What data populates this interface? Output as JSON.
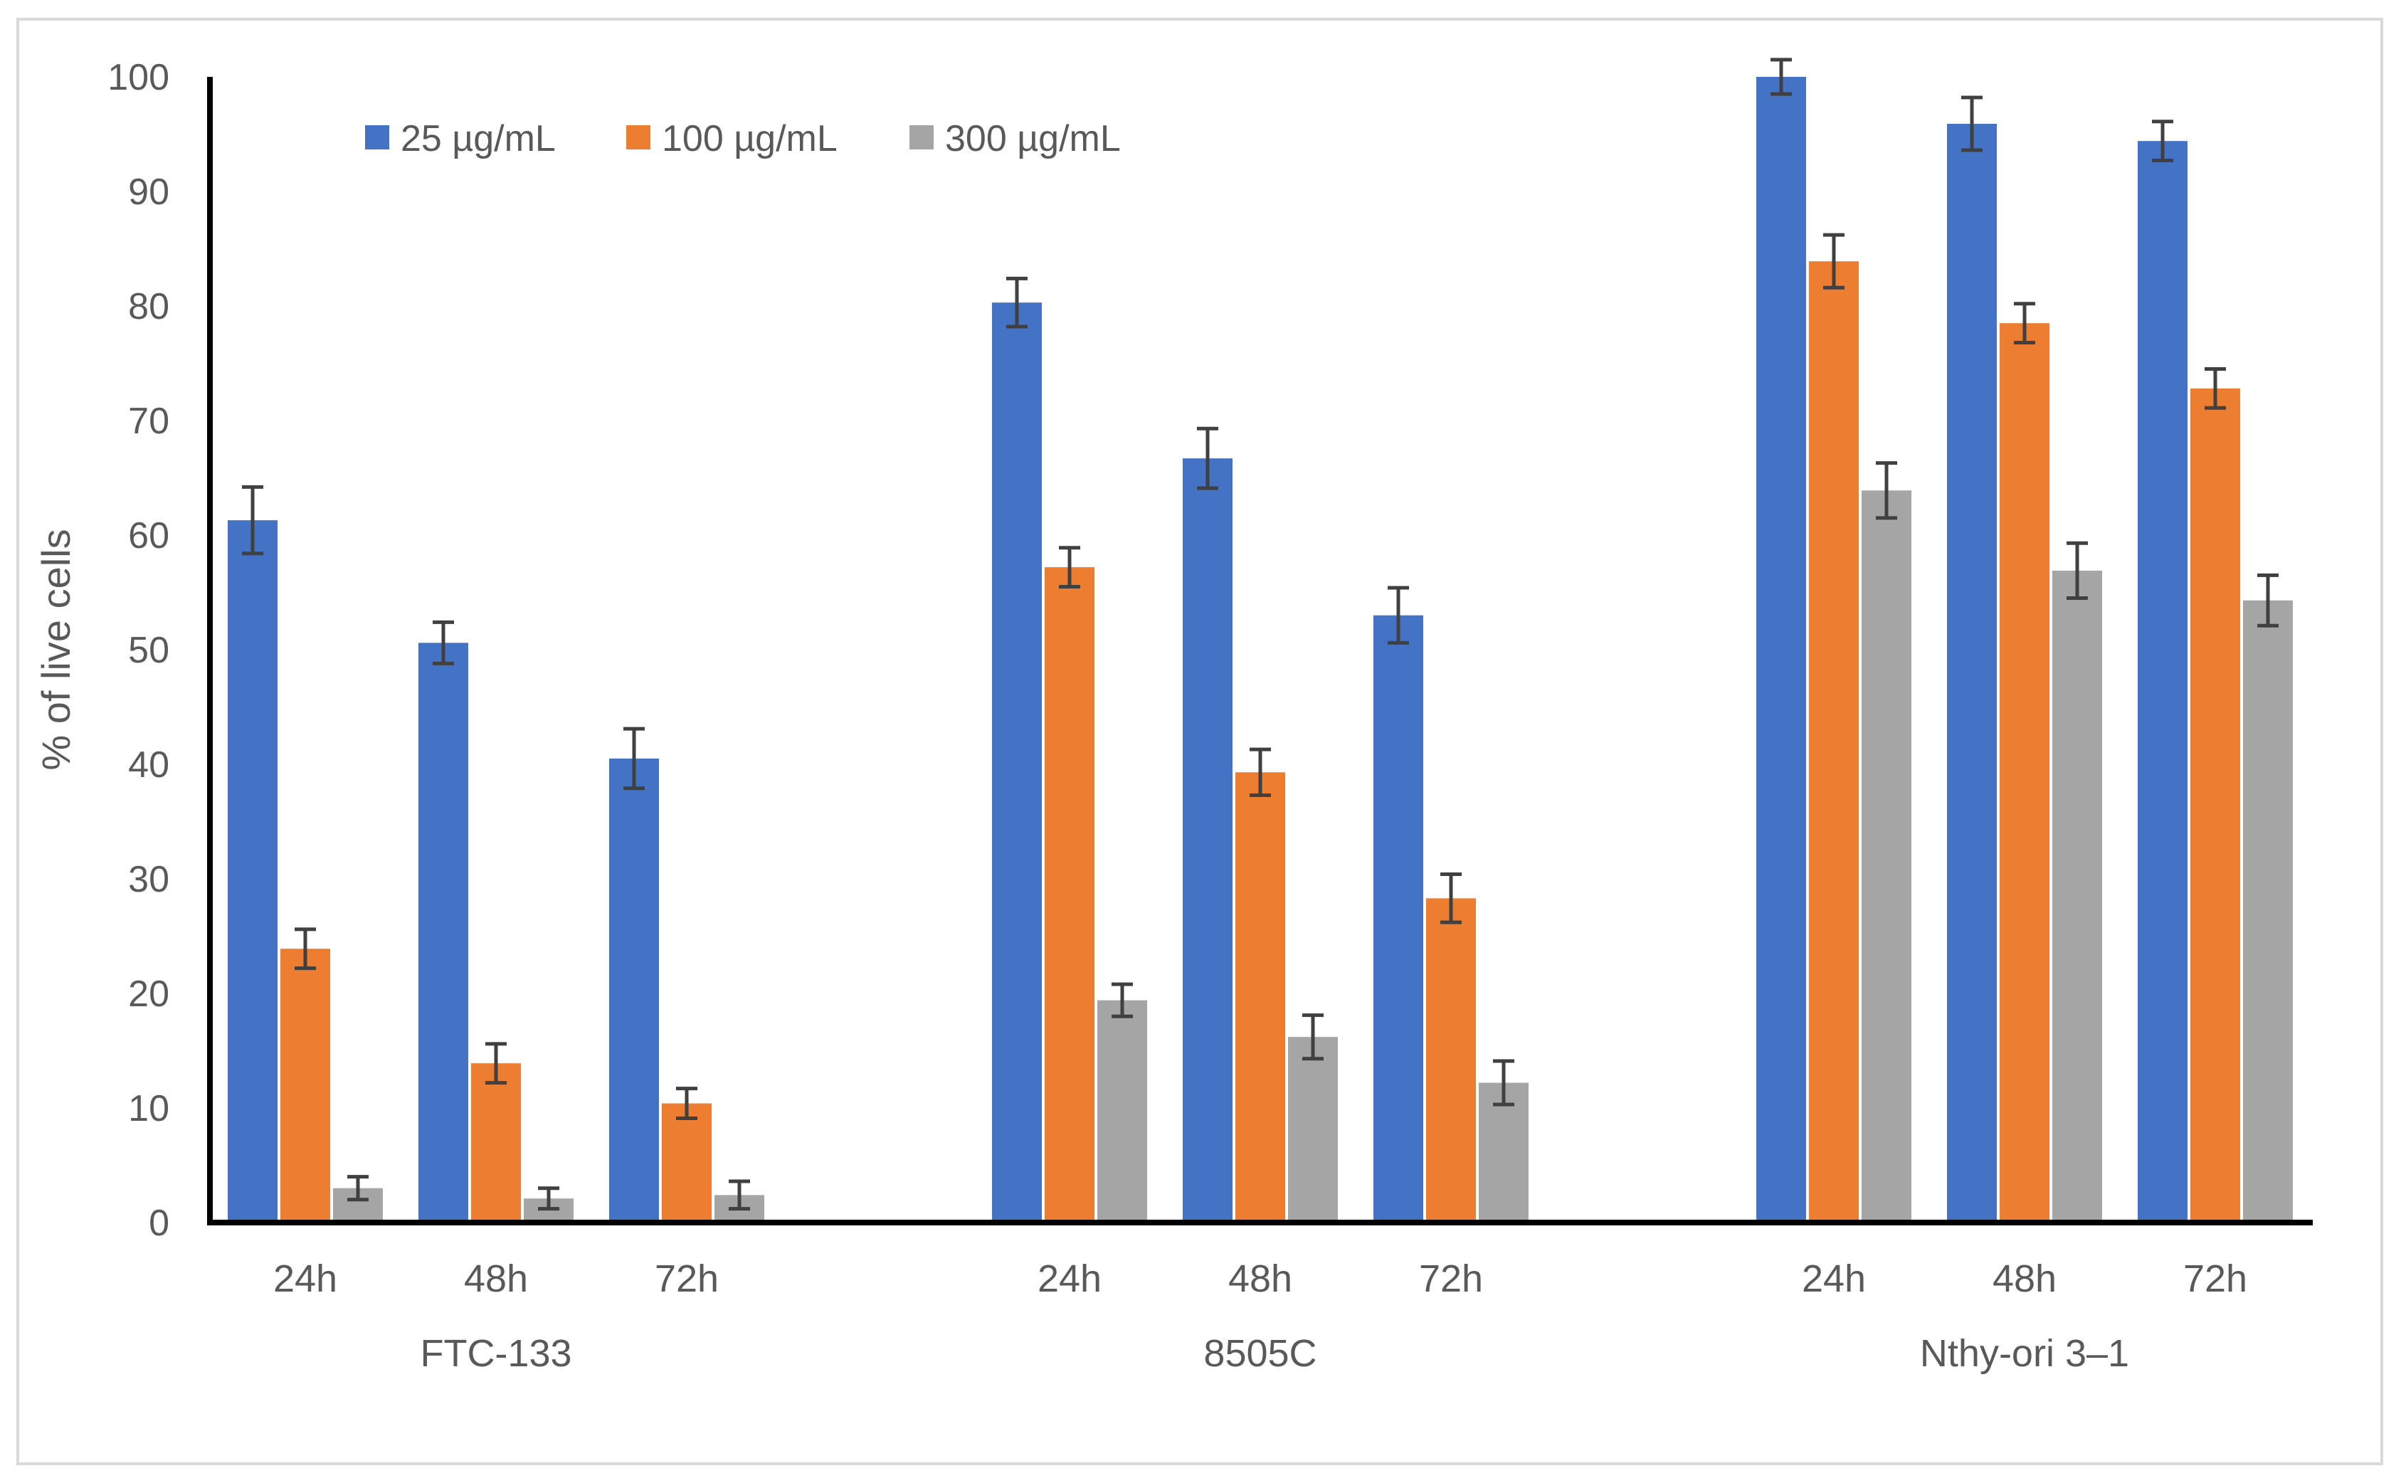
{
  "chart_data": {
    "type": "bar",
    "title": "",
    "xlabel": "",
    "ylabel": "% of live cells",
    "ylim": [
      0,
      100
    ],
    "yticks": [
      "0",
      "10",
      "20",
      "30",
      "40",
      "50",
      "60",
      "70",
      "80",
      "90",
      "100"
    ],
    "grid": false,
    "legend_position": "top-left",
    "groups": [
      {
        "label": "FTC-133",
        "times": [
          "24h",
          "48h",
          "72h"
        ]
      },
      {
        "label": "8505C",
        "times": [
          "24h",
          "48h",
          "72h"
        ]
      },
      {
        "label": "Nthy-ori 3–1",
        "times": [
          "24h",
          "48h",
          "72h"
        ]
      }
    ],
    "categories": [
      "FTC-133 24h",
      "FTC-133 48h",
      "FTC-133 72h",
      "8505C 24h",
      "8505C 48h",
      "8505C 72h",
      "Nthy-ori 3–1 24h",
      "Nthy-ori 3–1 48h",
      "Nthy-ori 3–1 72h"
    ],
    "series": [
      {
        "name": "25 µg/mL",
        "color": "#4472C4",
        "values": [
          61.3,
          50.6,
          40.5,
          80.3,
          66.7,
          53.0,
          100.0,
          95.9,
          94.4
        ],
        "errors": [
          2.9,
          1.8,
          2.6,
          2.1,
          2.6,
          2.4,
          1.5,
          2.3,
          1.7
        ]
      },
      {
        "name": "100 µg/mL",
        "color": "#ED7D31",
        "values": [
          23.9,
          13.9,
          10.4,
          57.2,
          39.3,
          28.3,
          83.9,
          78.5,
          72.8
        ],
        "errors": [
          1.7,
          1.7,
          1.3,
          1.7,
          2.0,
          2.1,
          2.3,
          1.7,
          1.7
        ]
      },
      {
        "name": "300 µg/mL",
        "color": "#A5A5A5",
        "values": [
          3.0,
          2.1,
          2.4,
          19.4,
          16.2,
          12.2,
          63.9,
          56.9,
          54.3
        ],
        "errors": [
          1.0,
          0.9,
          1.2,
          1.4,
          1.9,
          1.9,
          2.4,
          2.4,
          2.2
        ]
      }
    ]
  }
}
